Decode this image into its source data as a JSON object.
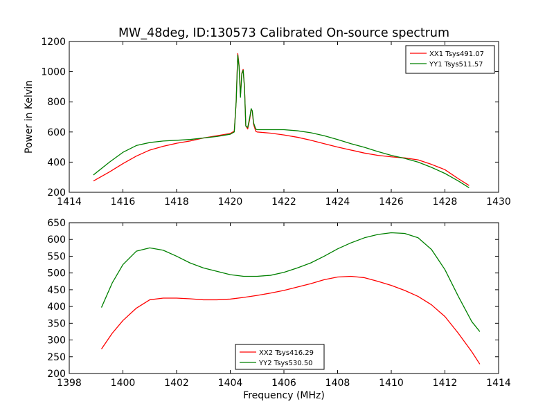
{
  "chart_data": [
    {
      "type": "line",
      "title": "MW_48deg, ID:130573 Calibrated On-source spectrum",
      "xlabel": "",
      "ylabel": "Power in Kelvin",
      "xlim": [
        1414,
        1430
      ],
      "ylim": [
        200,
        1200
      ],
      "xticks": [
        "1414",
        "1416",
        "1418",
        "1420",
        "1422",
        "1424",
        "1426",
        "1428",
        "1430"
      ],
      "yticks": [
        "200",
        "400",
        "600",
        "800",
        "1000",
        "1200"
      ],
      "legend_position": "top-right",
      "grid": false,
      "series": [
        {
          "name": "XX1 Tsys491.07",
          "color": "#ff0000",
          "x": [
            1414.9,
            1415.5,
            1416.0,
            1416.5,
            1417.0,
            1417.5,
            1418.0,
            1418.5,
            1419.0,
            1419.5,
            1420.0,
            1420.15,
            1420.22,
            1420.28,
            1420.33,
            1420.38,
            1420.43,
            1420.48,
            1420.53,
            1420.58,
            1420.65,
            1420.72,
            1420.78,
            1420.82,
            1420.87,
            1420.95,
            1421.0,
            1421.5,
            1422.0,
            1422.5,
            1423.0,
            1423.5,
            1424.0,
            1424.5,
            1425.0,
            1425.5,
            1426.0,
            1426.5,
            1427.0,
            1427.5,
            1428.0,
            1428.5,
            1428.9
          ],
          "y": [
            275,
            335,
            390,
            440,
            480,
            505,
            525,
            540,
            560,
            575,
            590,
            605,
            800,
            1120,
            1040,
            840,
            990,
            1015,
            900,
            640,
            620,
            680,
            750,
            740,
            650,
            605,
            600,
            592,
            580,
            565,
            545,
            522,
            500,
            480,
            460,
            445,
            435,
            428,
            415,
            385,
            350,
            290,
            245
          ]
        },
        {
          "name": "YY1 Tsys511.57",
          "color": "#008000",
          "x": [
            1414.9,
            1415.5,
            1416.0,
            1416.5,
            1417.0,
            1417.5,
            1418.0,
            1418.5,
            1419.0,
            1419.5,
            1420.0,
            1420.15,
            1420.22,
            1420.28,
            1420.33,
            1420.38,
            1420.43,
            1420.48,
            1420.53,
            1420.58,
            1420.65,
            1420.72,
            1420.78,
            1420.82,
            1420.87,
            1420.95,
            1421.0,
            1421.5,
            1422.0,
            1422.5,
            1423.0,
            1423.5,
            1424.0,
            1424.5,
            1425.0,
            1425.5,
            1426.0,
            1426.5,
            1427.0,
            1427.5,
            1428.0,
            1428.5,
            1428.9
          ],
          "y": [
            315,
            400,
            465,
            510,
            530,
            540,
            545,
            550,
            560,
            570,
            585,
            600,
            800,
            1110,
            1030,
            830,
            985,
            1010,
            895,
            640,
            630,
            690,
            755,
            740,
            660,
            620,
            615,
            615,
            615,
            608,
            595,
            575,
            550,
            522,
            498,
            470,
            445,
            425,
            400,
            365,
            325,
            275,
            230
          ]
        }
      ]
    },
    {
      "type": "line",
      "title": "",
      "xlabel": "Frequency (MHz)",
      "ylabel": "",
      "xlim": [
        1398,
        1414
      ],
      "ylim": [
        200,
        650
      ],
      "xticks": [
        "1398",
        "1400",
        "1402",
        "1404",
        "1406",
        "1408",
        "1410",
        "1412",
        "1414"
      ],
      "yticks": [
        "200",
        "250",
        "300",
        "350",
        "400",
        "450",
        "500",
        "550",
        "600",
        "650"
      ],
      "legend_position": "bottom-center",
      "grid": false,
      "series": [
        {
          "name": "XX2 Tsys416.29",
          "color": "#ff0000",
          "x": [
            1399.2,
            1399.6,
            1400.0,
            1400.5,
            1401.0,
            1401.5,
            1402.0,
            1402.5,
            1403.0,
            1403.5,
            1404.0,
            1404.5,
            1405.0,
            1405.5,
            1406.0,
            1406.5,
            1407.0,
            1407.5,
            1408.0,
            1408.5,
            1409.0,
            1409.5,
            1410.0,
            1410.5,
            1411.0,
            1411.5,
            1412.0,
            1412.5,
            1413.0,
            1413.3
          ],
          "y": [
            273,
            320,
            358,
            395,
            420,
            425,
            425,
            423,
            420,
            420,
            422,
            427,
            433,
            440,
            448,
            458,
            468,
            480,
            488,
            490,
            486,
            475,
            463,
            448,
            430,
            405,
            370,
            320,
            265,
            228
          ]
        },
        {
          "name": "YY2 Tsys530.50",
          "color": "#008000",
          "x": [
            1399.2,
            1399.6,
            1400.0,
            1400.5,
            1401.0,
            1401.5,
            1402.0,
            1402.5,
            1403.0,
            1403.5,
            1404.0,
            1404.5,
            1405.0,
            1405.5,
            1406.0,
            1406.5,
            1407.0,
            1407.5,
            1408.0,
            1408.5,
            1409.0,
            1409.5,
            1410.0,
            1410.5,
            1411.0,
            1411.5,
            1412.0,
            1412.5,
            1413.0,
            1413.3
          ],
          "y": [
            397,
            470,
            525,
            565,
            575,
            568,
            550,
            530,
            515,
            505,
            495,
            490,
            490,
            493,
            502,
            515,
            530,
            550,
            572,
            590,
            605,
            615,
            620,
            618,
            605,
            570,
            510,
            430,
            355,
            325
          ]
        }
      ]
    }
  ]
}
